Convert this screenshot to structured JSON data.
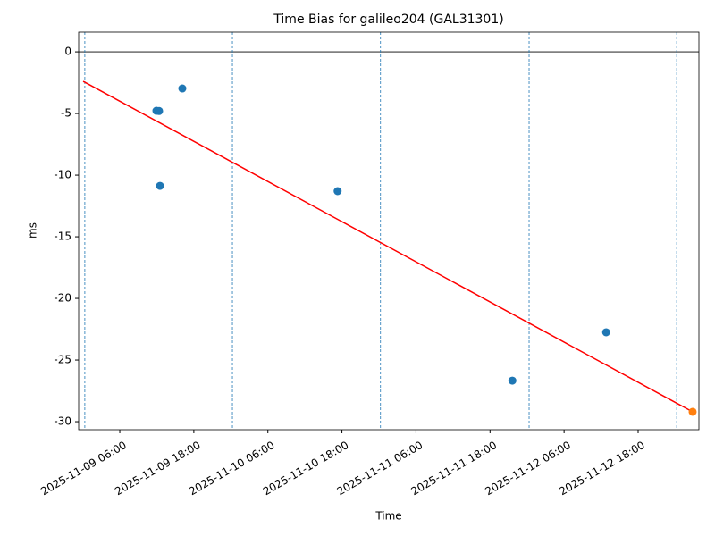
{
  "chart_data": {
    "type": "scatter",
    "title": "Time Bias for galileo204 (GAL31301)",
    "xlabel": "Time",
    "ylabel": "ms",
    "xlim": [
      "2025-11-08T23:20",
      "2025-11-13T03:51"
    ],
    "ylim": [
      -30.65,
      1.6
    ],
    "xticks": [
      {
        "value": "2025-11-09T06:00",
        "label": "2025-11-09 06:00"
      },
      {
        "value": "2025-11-09T18:00",
        "label": "2025-11-09 18:00"
      },
      {
        "value": "2025-11-10T06:00",
        "label": "2025-11-10 06:00"
      },
      {
        "value": "2025-11-10T18:00",
        "label": "2025-11-10 18:00"
      },
      {
        "value": "2025-11-11T06:00",
        "label": "2025-11-11 06:00"
      },
      {
        "value": "2025-11-11T18:00",
        "label": "2025-11-11 18:00"
      },
      {
        "value": "2025-11-12T06:00",
        "label": "2025-11-12 06:00"
      },
      {
        "value": "2025-11-12T18:00",
        "label": "2025-11-12 18:00"
      }
    ],
    "yticks": [
      0,
      -5,
      -10,
      -15,
      -20,
      -25,
      -30
    ],
    "hline": {
      "value": 0,
      "color": "#000000"
    },
    "vlines": {
      "color": "#1f77b4",
      "x": [
        "2025-11-09T00:20",
        "2025-11-10T00:15",
        "2025-11-11T00:15",
        "2025-11-12T00:20",
        "2025-11-13T00:15"
      ]
    },
    "series": [
      {
        "type": "scatter",
        "color": "#1f77b4",
        "x": [
          "2025-11-09T11:56",
          "2025-11-09T12:22",
          "2025-11-09T12:31",
          "2025-11-09T16:08",
          "2025-11-10T17:18",
          "2025-11-11T21:37",
          "2025-11-12T12:49"
        ],
        "values": [
          -4.78,
          -4.8,
          -10.87,
          -2.97,
          -11.3,
          -26.67,
          -22.75
        ]
      },
      {
        "type": "scatter",
        "color": "#ff7f0e",
        "x": [
          "2025-11-13T02:50"
        ],
        "values": [
          -29.2
        ]
      },
      {
        "type": "line",
        "color": "#ff0000",
        "x": [
          "2025-11-09T00:04",
          "2025-11-13T02:50"
        ],
        "values": [
          -2.39,
          -29.2
        ]
      }
    ]
  }
}
